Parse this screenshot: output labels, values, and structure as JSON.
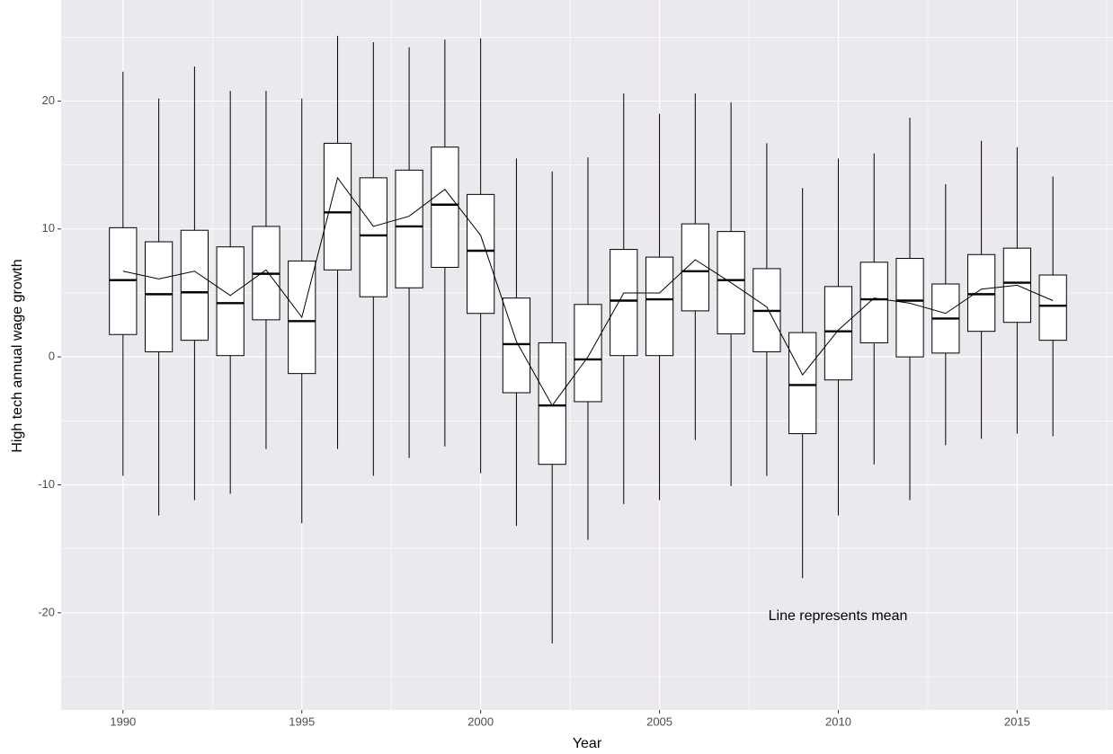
{
  "chart_data": {
    "type": "box",
    "x_label": "Year",
    "y_label": "High tech annual wage growth",
    "annotation": "Line represents mean",
    "x": [
      1990,
      1991,
      1992,
      1993,
      1994,
      1995,
      1996,
      1997,
      1998,
      1999,
      2000,
      2001,
      2002,
      2003,
      2004,
      2005,
      2006,
      2007,
      2008,
      2009,
      2010,
      2011,
      2012,
      2013,
      2014,
      2015,
      2016
    ],
    "whisker_low": [
      -9.3,
      -12.4,
      -11.2,
      -10.7,
      -7.2,
      -13.0,
      -7.2,
      -9.3,
      -7.9,
      -7.0,
      -9.1,
      -13.2,
      -22.4,
      -14.3,
      -11.5,
      -11.2,
      -6.5,
      -10.1,
      -9.3,
      -17.3,
      -12.4,
      -8.4,
      -11.2,
      -6.9,
      -6.4,
      -6.0,
      -6.2
    ],
    "q1": [
      1.75,
      0.4,
      1.3,
      0.1,
      2.9,
      -1.3,
      6.8,
      4.7,
      5.4,
      7.0,
      3.4,
      -2.8,
      -8.4,
      -3.5,
      0.1,
      0.1,
      3.6,
      1.8,
      0.4,
      -6.0,
      -1.8,
      1.1,
      0.0,
      0.3,
      2.0,
      2.7,
      1.3
    ],
    "median": [
      6.0,
      4.9,
      5.05,
      4.2,
      6.5,
      2.8,
      11.3,
      9.5,
      10.2,
      11.9,
      8.3,
      1.0,
      -3.8,
      -0.2,
      4.4,
      4.5,
      6.7,
      6.0,
      3.6,
      -2.2,
      2.0,
      4.5,
      4.4,
      3.0,
      4.9,
      5.8,
      4.0
    ],
    "q3": [
      10.1,
      9.0,
      9.9,
      8.6,
      10.2,
      7.5,
      16.7,
      14.0,
      14.6,
      16.4,
      12.7,
      4.6,
      1.1,
      4.1,
      8.4,
      7.8,
      10.4,
      9.8,
      6.9,
      1.9,
      5.5,
      7.4,
      7.7,
      5.7,
      8.0,
      8.5,
      6.4
    ],
    "whisker_high": [
      22.3,
      20.2,
      22.7,
      20.8,
      20.8,
      20.2,
      25.1,
      24.6,
      24.2,
      24.8,
      24.9,
      15.5,
      14.5,
      15.6,
      20.6,
      19.0,
      20.6,
      19.9,
      16.7,
      13.2,
      15.5,
      15.9,
      18.7,
      13.5,
      16.9,
      16.4,
      14.1
    ],
    "mean": [
      6.7,
      6.1,
      6.7,
      4.8,
      6.8,
      3.1,
      14.0,
      10.2,
      11.0,
      13.1,
      9.5,
      1.2,
      -3.8,
      0.0,
      5.0,
      5.0,
      7.6,
      5.8,
      3.9,
      -1.4,
      2.1,
      4.6,
      4.2,
      3.4,
      5.3,
      5.6,
      4.4
    ],
    "xlim": [
      1988.27,
      2017.68
    ],
    "ylim": [
      -27.6,
      27.9
    ],
    "xticks": [
      1990,
      1995,
      2000,
      2005,
      2010,
      2015
    ],
    "yticks": [
      -20,
      -10,
      0,
      10,
      20
    ],
    "grid": true,
    "box_color": "#ffffff",
    "line_color": "#000000",
    "panel_color": "#ebe8ee"
  }
}
